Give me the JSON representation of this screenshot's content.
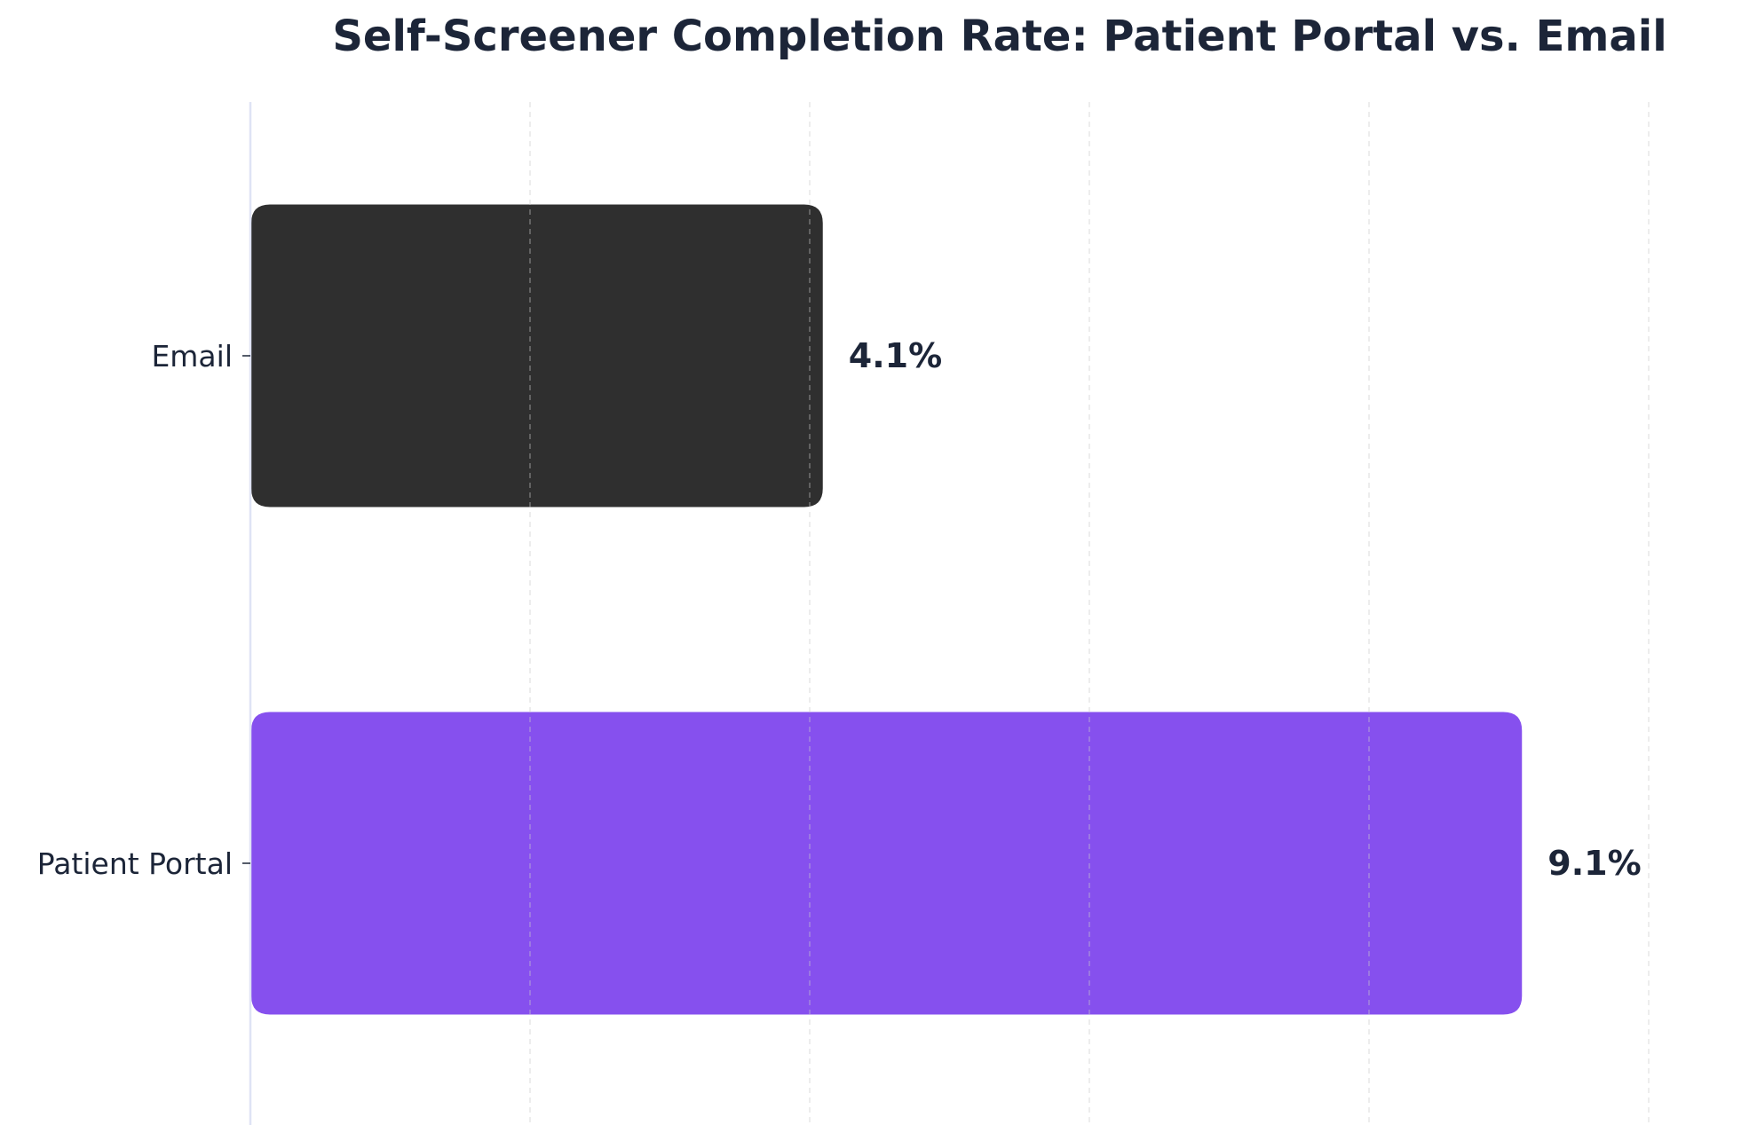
{
  "chart_data": {
    "type": "bar",
    "orientation": "horizontal",
    "title": "Self-Screener Completion Rate: Patient Portal vs. Email",
    "xlabel": "",
    "ylabel": "",
    "categories": [
      "Email",
      "Patient Portal"
    ],
    "values": [
      4.1,
      9.1
    ],
    "value_labels": [
      "4.1%",
      "9.1%"
    ],
    "xlim": [
      0,
      10
    ],
    "grid": true,
    "legend": "none",
    "show_x_tick_labels": false,
    "colors": {
      "bars": [
        "#2f2f2f",
        "#8650ee"
      ],
      "title": "#1c2538",
      "text": "#1c2538",
      "axis": "#dfe3f5",
      "grid": "#c9c9c9",
      "background": "#ffffff"
    }
  }
}
